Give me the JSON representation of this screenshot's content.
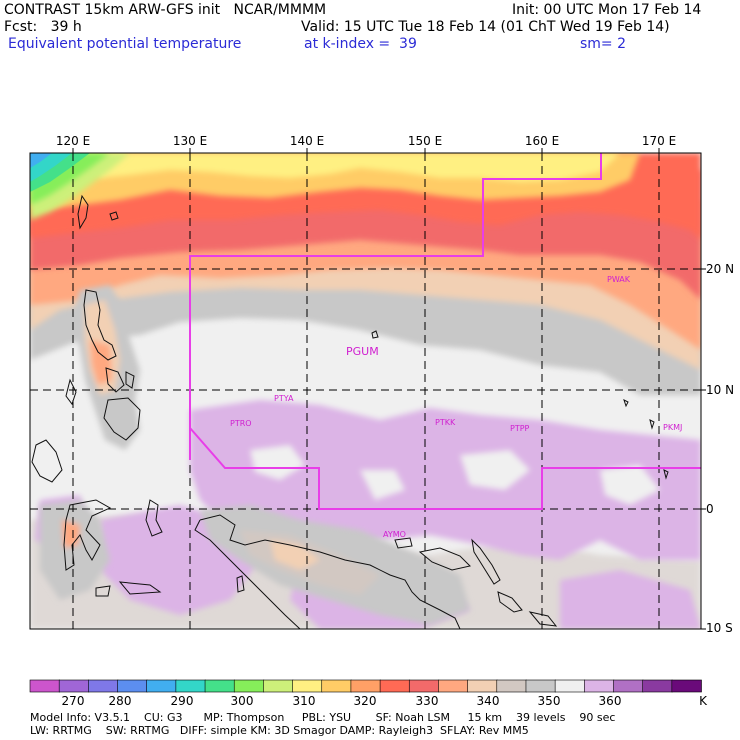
{
  "header": {
    "title_line": "CONTRAST 15km ARW-GFS init   NCAR/MMMM",
    "init": "Init: 00 UTC Mon 17 Feb 14",
    "fcst": "Fcst:   39 h",
    "valid": "Valid: 15 UTC Tue 18 Feb 14 (01 ChT Wed 19 Feb 14)",
    "field": "Equivalent potential temperature",
    "level": "at k-index =  39",
    "smooth": "sm= 2"
  },
  "map": {
    "lon_labels": [
      "120 E",
      "130 E",
      "140 E",
      "150 E",
      "160 E",
      "170 E"
    ],
    "lat_labels": [
      "20 N",
      "10 N",
      "0",
      "10 S"
    ],
    "stations": [
      "PWAK",
      "PGUM",
      "PTYA",
      "PTRO",
      "PTKK",
      "PTPP",
      "PKMJ",
      "AYMO"
    ]
  },
  "colorbar": {
    "unit": "K",
    "tick_labels": [
      "270",
      "280",
      "290",
      "300",
      "310",
      "320",
      "330",
      "340",
      "350",
      "360"
    ],
    "colors": [
      "#cc55cc",
      "#a066d6",
      "#7f78e8",
      "#5c8ef0",
      "#41aef0",
      "#33d6c8",
      "#44e08a",
      "#86ee5a",
      "#cdf07a",
      "#fff082",
      "#ffcc66",
      "#ffa066",
      "#ff6a55",
      "#f26a6a",
      "#ffa880",
      "#f2d0b4",
      "#d2c8c2",
      "#c8c8c8",
      "#f0f0f0",
      "#dcb4e6",
      "#b070c4",
      "#8a3aa0",
      "#6a0a7a"
    ]
  },
  "footer": {
    "line1": "Model Info: V3.5.1    CU: G3      MP: Thompson     PBL: YSU       SF: Noah LSM     15 km    39 levels    90 sec",
    "line2": "LW: RRTMG    SW: RRTMG   DIFF: simple KM: 3D Smagor DAMP: Rayleigh3  SFLAY: Rev MM5"
  }
}
